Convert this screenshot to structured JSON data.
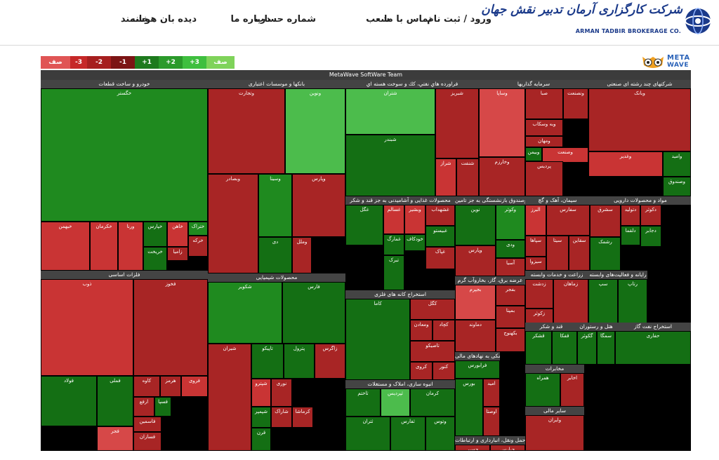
{
  "nav": {
    "items": [
      {
        "label": "خانه",
        "right": 452
      },
      {
        "label": "دیده بان هوشمند",
        "right": 520
      },
      {
        "label": "درباره ما",
        "right": 625
      },
      {
        "label": "شماره حساب",
        "right": 690
      },
      {
        "label": "شعب",
        "right": 795
      },
      {
        "label": "تماس با ما",
        "right": 855
      },
      {
        "label": "ورود / ثبت نام",
        "right": 940
      }
    ]
  },
  "logo": {
    "fa": "شرکت کارگزاری آرمان تدبیر نقش جهان",
    "en": "ARMAN TADBIR BROKERAGE CO."
  },
  "brand": {
    "line1": "META",
    "line2": "WAVE"
  },
  "colors": {
    "g3": "#2a9d2a",
    "g2": "#1f8a1f",
    "g1": "#146f14",
    "r1": "#8b1a1a",
    "r2": "#a82525",
    "r3": "#c93434",
    "r4": "#d64848",
    "lg": "#4cbc4c",
    "lg2": "#62cc62"
  },
  "legend": [
    {
      "label": "صف فروش",
      "color": "#e05555"
    },
    {
      "label": "-3",
      "color": "#c62828"
    },
    {
      "label": "-2",
      "color": "#a61f1f"
    },
    {
      "label": "-1",
      "color": "#7c1515"
    },
    {
      "label": "+1",
      "color": "#1e7a1e"
    },
    {
      "label": "+2",
      "color": "#2b9a2b"
    },
    {
      "label": "+3",
      "color": "#3fbf3f"
    },
    {
      "label": "صف خرید",
      "color": "#7fd35a"
    }
  ],
  "treemap": {
    "title": "MetaWave SoftWare Team",
    "sections": [
      {
        "title": "خودرو و ساخت قطعات",
        "cells": [
          {
            "label": "خگستر",
            "c": "g2"
          },
          {
            "label": "خبهمن",
            "c": "r3"
          },
          {
            "label": "خکرمان",
            "c": "r3"
          },
          {
            "label": "ورنا",
            "c": "r3"
          },
          {
            "label": "خپارس",
            "c": "g1"
          },
          {
            "label": "خاهن",
            "c": "r3"
          },
          {
            "label": "ختراک",
            "c": "g2"
          },
          {
            "label": "خریخت",
            "c": "g1"
          },
          {
            "label": "زامیا",
            "c": "r2"
          },
          {
            "label": "خرکه",
            "c": "r2"
          }
        ]
      },
      {
        "title": "بانکها و موسسات اعتباری",
        "cells": [
          {
            "label": "وتجارت",
            "c": "r2"
          },
          {
            "label": "ونوین",
            "c": "lg"
          },
          {
            "label": "وبصادر",
            "c": "r2"
          },
          {
            "label": "وسینا",
            "c": "g2"
          },
          {
            "label": "وپارس",
            "c": "r2"
          },
          {
            "label": "دی",
            "c": "g1"
          },
          {
            "label": "وملل",
            "c": "r2"
          }
        ]
      },
      {
        "title": "فراورده هاي نفتي، كك و سوخت هسته اي",
        "cells": [
          {
            "label": "شتران",
            "c": "lg"
          },
          {
            "label": "شبریز",
            "c": "r2"
          },
          {
            "label": "شبندر",
            "c": "g1"
          },
          {
            "label": "شراز",
            "c": "r3"
          },
          {
            "label": "شنفت",
            "c": "r2"
          }
        ]
      },
      {
        "title": "سرمایه گذاریها",
        "cells": [
          {
            "label": "وساپا",
            "c": "r4"
          },
          {
            "label": "صبا",
            "c": "r2"
          },
          {
            "label": "ونصنعت",
            "c": "r2"
          },
          {
            "label": "وبه وسکاب",
            "c": "r2"
          },
          {
            "label": "ومهان",
            "c": "r2"
          },
          {
            "label": "وخارزم",
            "c": "r2"
          },
          {
            "label": "وبیمن",
            "c": "g1"
          },
          {
            "label": "وصنعت",
            "c": "r3"
          },
          {
            "label": "پردیس",
            "c": "r2"
          }
        ]
      },
      {
        "title": "شرکتهای چند رشته ای صنعتی",
        "cells": [
          {
            "label": "وبانک",
            "c": "r2"
          },
          {
            "label": "وغدیر",
            "c": "r3"
          },
          {
            "label": "وامید",
            "c": "g1"
          },
          {
            "label": "وصندوق",
            "c": "g1"
          }
        ]
      },
      {
        "title": "فلزات اساسی",
        "cells": [
          {
            "label": "ذوب",
            "c": "r3"
          },
          {
            "label": "فخوز",
            "c": "r2"
          },
          {
            "label": "فولاد",
            "c": "g1"
          },
          {
            "label": "فملی",
            "c": "g1"
          },
          {
            "label": "کاوه",
            "c": "r2"
          },
          {
            "label": "هرمز",
            "c": "r2"
          },
          {
            "label": "فروی",
            "c": "r3"
          },
          {
            "label": "ارفع",
            "c": "r2"
          },
          {
            "label": "فسپا",
            "c": "g1"
          },
          {
            "label": "فجر",
            "c": "r4"
          },
          {
            "label": "فاسمین",
            "c": "r2"
          },
          {
            "label": "فسازان",
            "c": "r2"
          }
        ]
      },
      {
        "title": "محصولات شیمیایی",
        "cells": [
          {
            "label": "شکویر",
            "c": "g2"
          },
          {
            "label": "فارس",
            "c": "g1"
          },
          {
            "label": "شیران",
            "c": "r2"
          },
          {
            "label": "تاپیکو",
            "c": "g1"
          },
          {
            "label": "پترول",
            "c": "g1"
          },
          {
            "label": "زاگرس",
            "c": "r2"
          },
          {
            "label": "پارسان",
            "c": "r2"
          },
          {
            "label": "شپترو",
            "c": "r3"
          },
          {
            "label": "نوری",
            "c": "r2"
          },
          {
            "label": "شپمپر",
            "c": "g1"
          },
          {
            "label": "شاراک",
            "c": "r2"
          },
          {
            "label": "کرماشا",
            "c": "r2"
          },
          {
            "label": "قرن",
            "c": "g1"
          }
        ]
      },
      {
        "title": "محصولات غذایی و آشامیدنی به جز قند و شکر",
        "cells": [
          {
            "label": "غگل",
            "c": "g1"
          },
          {
            "label": "غسالم",
            "c": "r3"
          },
          {
            "label": "وبشیر",
            "c": "r3"
          },
          {
            "label": "غشهداب",
            "c": "r2"
          },
          {
            "label": "غمارگ",
            "c": "g1"
          },
          {
            "label": "خودکاف",
            "c": "g1"
          },
          {
            "label": "غبیستو",
            "c": "g1"
          },
          {
            "label": "تبرک",
            "c": "g1"
          },
          {
            "label": "غپاک",
            "c": "r2"
          }
        ]
      },
      {
        "title": "بیمه وصندوق بازنشستگی به جز تامین",
        "cells": [
          {
            "label": "نوین",
            "c": "g1"
          },
          {
            "label": "وکوثر",
            "c": "g2"
          },
          {
            "label": "وپارس",
            "c": "r2"
          },
          {
            "label": "ودی",
            "c": "g1"
          },
          {
            "label": "آسیا",
            "c": "r2"
          }
        ]
      },
      {
        "title": "سیمان، آهک و گچ",
        "cells": [
          {
            "label": "البرز",
            "c": "r3"
          },
          {
            "label": "سفارس",
            "c": "r2"
          },
          {
            "label": "سپاها",
            "c": "r2"
          },
          {
            "label": "سیتا",
            "c": "r2"
          },
          {
            "label": "سیزوا",
            "c": "r2"
          },
          {
            "label": "سقاین",
            "c": "r2"
          }
        ]
      },
      {
        "title": "مواد و محصولات دارویی",
        "cells": [
          {
            "label": "سشرق",
            "c": "r2"
          },
          {
            "label": "دتولید",
            "c": "r2"
          },
          {
            "label": "دکوثر",
            "c": "r2"
          },
          {
            "label": "دلقما",
            "c": "g1"
          },
          {
            "label": "رشمک",
            "c": "g1"
          },
          {
            "label": "دجابر",
            "c": "g1"
          }
        ]
      },
      {
        "title": "استخراج کانه های فلزی",
        "cells": [
          {
            "label": "کاما",
            "c": "g1"
          },
          {
            "label": "کگل",
            "c": "r2"
          },
          {
            "label": "ومعادن",
            "c": "r2"
          },
          {
            "label": "کچاد",
            "c": "r2"
          },
          {
            "label": "تاصیکو",
            "c": "r2"
          },
          {
            "label": "کنور",
            "c": "r2"
          },
          {
            "label": "کروی",
            "c": "r2"
          }
        ]
      },
      {
        "title": "عرضه برق، گاز، بخاروآب گرم",
        "cells": [
          {
            "label": "بجپرم",
            "c": "r4"
          },
          {
            "label": "دماوند",
            "c": "r2"
          },
          {
            "label": "بفجر",
            "c": "r2"
          },
          {
            "label": "بمپنا",
            "c": "r2"
          },
          {
            "label": "بکهنوج",
            "c": "r2"
          }
        ]
      },
      {
        "title": "فعالیتهای کمکی به نهادهای مالی",
        "cells": [
          {
            "label": "فرابورس",
            "c": "g1"
          },
          {
            "label": "بورس",
            "c": "g1"
          },
          {
            "label": "امید",
            "c": "r2"
          },
          {
            "label": "اوصتا",
            "c": "r2"
          }
        ]
      },
      {
        "title": "انبوه سازی، املاک و مستغلات",
        "cells": [
          {
            "label": "ثاختم",
            "c": "g1"
          },
          {
            "label": "ثپردیس",
            "c": "lg"
          },
          {
            "label": "کرمان",
            "c": "g1"
          },
          {
            "label": "ثتران",
            "c": "g1"
          },
          {
            "label": "ثفارس",
            "c": "g1"
          },
          {
            "label": "وتوس",
            "c": "g1"
          }
        ]
      },
      {
        "title": "زراعت و خدمات وابسته",
        "cells": [
          {
            "label": "زدشت",
            "c": "r2"
          },
          {
            "label": "زکوثر",
            "c": "r2"
          },
          {
            "label": "زماهان",
            "c": "r2"
          }
        ]
      },
      {
        "title": "رایانه و فعالیت‌های وابسته",
        "cells": [
          {
            "label": "سپ",
            "c": "g1"
          },
          {
            "label": "رتاپ",
            "c": "g1"
          }
        ]
      },
      {
        "title": "قند و شکر",
        "cells": [
          {
            "label": "قشکر",
            "c": "g1"
          },
          {
            "label": "قفکا",
            "c": "g1"
          }
        ]
      },
      {
        "title": "هتل و رستوران",
        "cells": [
          {
            "label": "گکوثر",
            "c": "g1"
          },
          {
            "label": "سمگا",
            "c": "g1"
          }
        ]
      },
      {
        "title": "استخراج نفت گاز",
        "cells": [
          {
            "label": "حفاری",
            "c": "g1"
          }
        ]
      },
      {
        "title": "مخابرات",
        "cells": [
          {
            "label": "همراه",
            "c": "g1"
          },
          {
            "label": "اخابر",
            "c": "r2"
          }
        ]
      },
      {
        "title": "حمل ونقل، انبارداری و ارتباطات",
        "cells": [
          {
            "label": "حسیر",
            "c": "r2"
          },
          {
            "label": "حپارس",
            "c": "r2"
          }
        ]
      },
      {
        "title": "سایر مالی",
        "cells": [
          {
            "label": "وایران",
            "c": "r2"
          }
        ]
      }
    ]
  }
}
